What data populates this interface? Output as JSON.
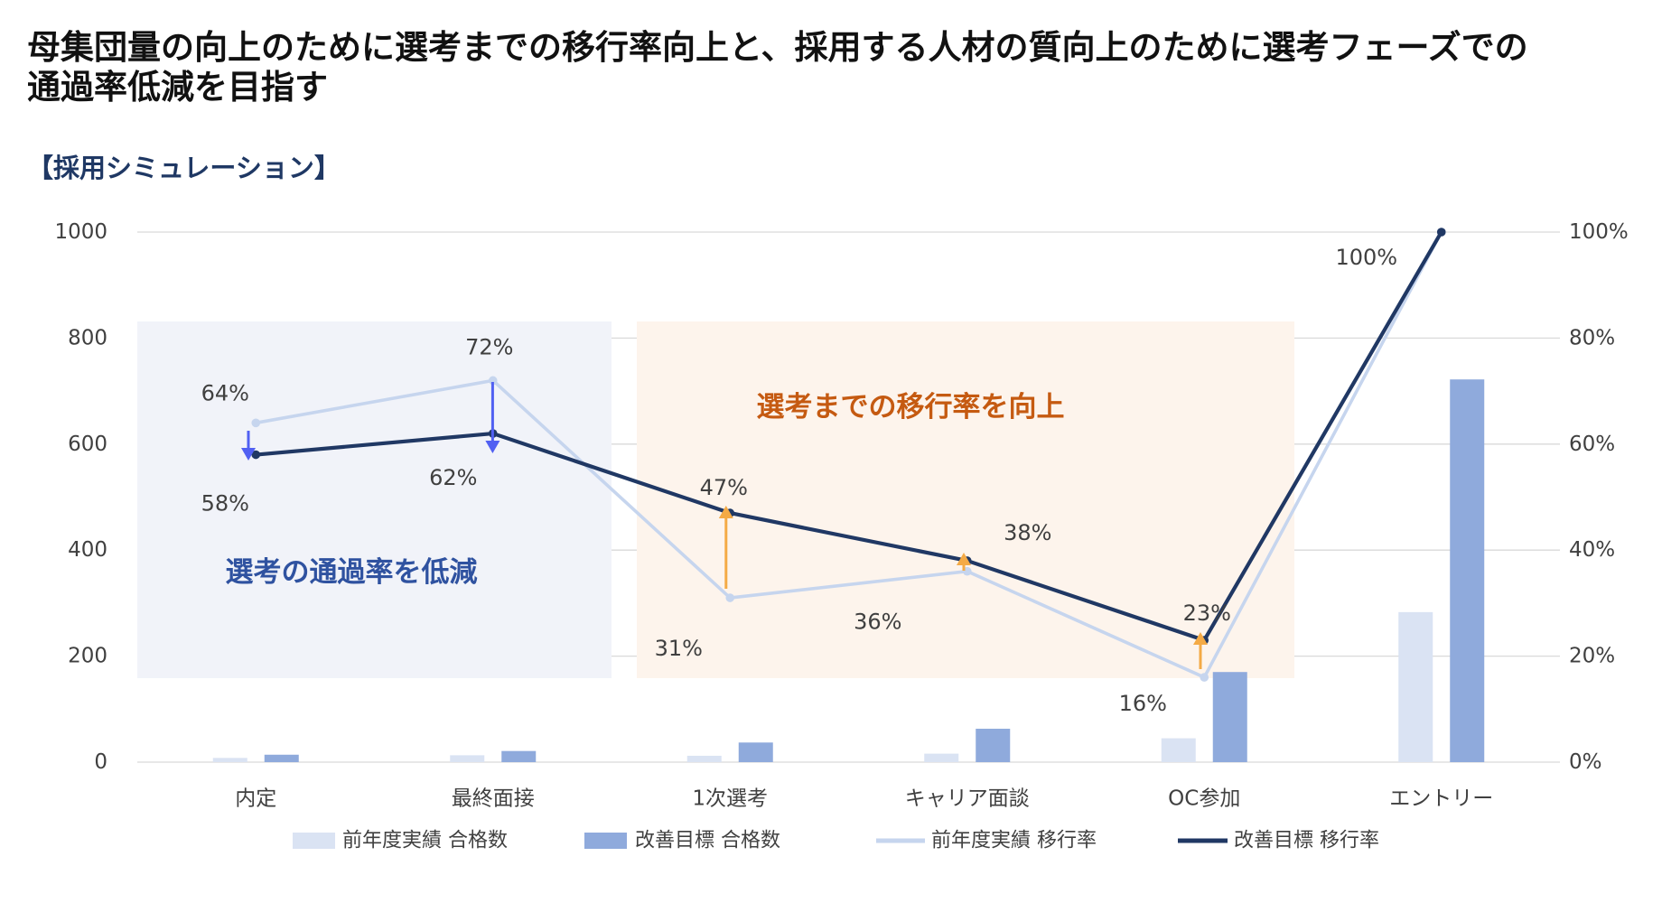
{
  "title": {
    "line1": "母集団量の向上のために選考までの移行率向上と、採用する人材の質向上のために選考フェーズでの",
    "line2": "通過率低減を目指す"
  },
  "subtitle": "【採用シミュレーション】",
  "chart_data": {
    "type": "bar",
    "categories": [
      "内定",
      "最終面接",
      "1次選考",
      "キャリア面談",
      "OC参加",
      "エントリー"
    ],
    "y_left": {
      "ylim": [
        0,
        1000
      ],
      "tick_labels": [
        "0",
        "200",
        "400",
        "600",
        "800",
        "1000"
      ]
    },
    "y_right": {
      "ylim": [
        0,
        100
      ],
      "unit": "%",
      "tick_labels": [
        "0%",
        "20%",
        "40%",
        "60%",
        "80%",
        "100%"
      ]
    },
    "series": [
      {
        "name": "前年度実績 合格数",
        "type": "bar",
        "axis": "left",
        "color": "#dae3f3",
        "values": [
          8,
          13,
          12,
          16,
          45,
          283
        ]
      },
      {
        "name": "改善目標 合格数",
        "type": "bar",
        "axis": "left",
        "color": "#8faadc",
        "values": [
          14,
          21,
          37,
          63,
          170,
          722
        ]
      },
      {
        "name": "前年度実績 移行率",
        "type": "line",
        "axis": "right",
        "color": "#c6d5ee",
        "values": [
          64,
          72,
          31,
          36,
          16,
          100
        ],
        "data_labels": [
          "64%",
          "72%",
          "31%",
          "36%",
          "16%",
          null
        ]
      },
      {
        "name": "改善目標 移行率",
        "type": "line",
        "axis": "right",
        "color": "#203864",
        "values": [
          58,
          62,
          47,
          38,
          23,
          100
        ],
        "data_labels": [
          "58%",
          "62%",
          "47%",
          "38%",
          "23%",
          "100%"
        ]
      }
    ],
    "grid": true,
    "legend": "bottom",
    "annotations": [
      {
        "text": "選考の通過率を低減",
        "color": "#2f52a0",
        "region_color": "#f1f3f9",
        "arrow_color": "#5160f2"
      },
      {
        "text": "選考までの移行率を向上",
        "color": "#c55a11",
        "region_color": "#fdf4ec",
        "arrow_color": "#f4aa45"
      }
    ]
  }
}
